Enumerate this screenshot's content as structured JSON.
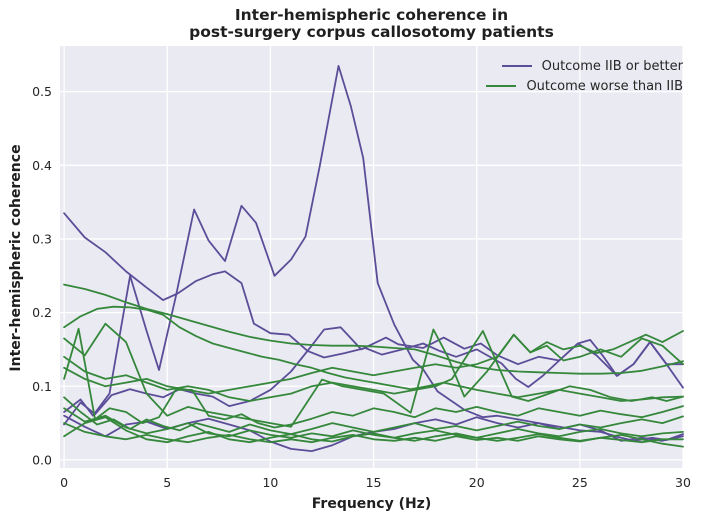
{
  "title": {
    "line1": "Inter-hemispheric coherence in",
    "line2": "post-surgery corpus callosotomy patients"
  },
  "legend": {
    "items": [
      {
        "label": "Outcome IIB or better",
        "color": "#5c4d99"
      },
      {
        "label": "Outcome worse than IIB",
        "color": "#35883b"
      }
    ]
  },
  "colors": {
    "figure_bg": "#ffffff",
    "plot_bg": "#eaeaf2",
    "grid": "#ffffff",
    "text": "#262626",
    "purple": "#5c4d99",
    "green": "#35883b"
  },
  "chart_data": {
    "type": "line",
    "title": "Inter-hemispheric coherence in post-surgery corpus callosotomy patients",
    "xlabel": "Frequency (Hz)",
    "ylabel": "Inter-hemispheric coherence",
    "xlim": [
      -0.2,
      30.0
    ],
    "ylim": [
      -0.011,
      0.562
    ],
    "xticks": [
      0,
      5,
      10,
      15,
      20,
      25,
      30
    ],
    "yticks": [
      0.0,
      0.1,
      0.2,
      0.3,
      0.4,
      0.5
    ],
    "grid": true,
    "legend_position": "upper right",
    "groups": [
      {
        "name": "Outcome IIB or better",
        "color": "#5c4d99"
      },
      {
        "name": "Outcome worse than IIB",
        "color": "#35883b"
      }
    ],
    "series": [
      {
        "name": "iib-patient-1",
        "group": 0,
        "x": [
          0,
          0.8,
          1.4,
          2.2,
          3.2,
          4.0,
          4.6,
          5.4,
          6.3,
          7.0,
          7.8,
          8.6,
          9.3,
          10.2,
          11.0,
          11.7,
          12.4,
          13.3,
          13.9,
          14.5,
          15.2,
          16.0,
          16.9,
          17.4,
          18.1,
          19.4,
          20.3,
          21,
          22,
          23,
          24,
          25,
          26,
          27,
          27.6,
          28.5,
          29.2,
          30
        ],
        "y": [
          0.065,
          0.082,
          0.06,
          0.09,
          0.25,
          0.175,
          0.122,
          0.22,
          0.34,
          0.298,
          0.27,
          0.345,
          0.322,
          0.25,
          0.272,
          0.303,
          0.4,
          0.535,
          0.48,
          0.41,
          0.24,
          0.184,
          0.136,
          0.123,
          0.093,
          0.068,
          0.058,
          0.06,
          0.055,
          0.05,
          0.045,
          0.04,
          0.038,
          0.03,
          0.026,
          0.03,
          0.027,
          0.035
        ]
      },
      {
        "name": "iib-patient-2",
        "group": 0,
        "x": [
          0,
          1,
          2,
          3,
          4,
          4.8,
          5.5,
          6.4,
          7.2,
          7.8,
          8.6,
          9.2,
          10,
          10.9,
          11.8,
          12.6,
          13.6,
          14.6,
          15.4,
          16.4,
          17.4,
          18.2,
          19,
          20,
          21.2,
          21.9,
          22.5,
          23.2,
          24,
          24.9,
          25.5,
          26.1,
          26.8,
          27.6,
          28.4,
          29.2,
          30
        ],
        "y": [
          0.335,
          0.302,
          0.282,
          0.256,
          0.234,
          0.217,
          0.226,
          0.243,
          0.252,
          0.256,
          0.24,
          0.185,
          0.172,
          0.17,
          0.148,
          0.139,
          0.145,
          0.152,
          0.143,
          0.15,
          0.158,
          0.148,
          0.14,
          0.15,
          0.131,
          0.11,
          0.099,
          0.114,
          0.135,
          0.158,
          0.163,
          0.142,
          0.114,
          0.13,
          0.16,
          0.13,
          0.098
        ]
      },
      {
        "name": "iib-patient-3",
        "group": 0,
        "x": [
          0,
          0.8,
          1.5,
          2.3,
          3.2,
          4,
          4.8,
          5.6,
          6.4,
          7.2,
          8,
          9,
          10,
          11,
          12,
          12.6,
          13.4,
          14.4,
          15.6,
          16.2,
          17.4,
          18.4,
          19.4,
          20.2,
          21,
          22,
          23,
          24,
          24.9,
          25.8,
          26.8,
          27.6,
          28.4,
          29.2,
          30
        ],
        "y": [
          0.048,
          0.078,
          0.062,
          0.088,
          0.096,
          0.09,
          0.085,
          0.096,
          0.09,
          0.086,
          0.073,
          0.08,
          0.095,
          0.12,
          0.155,
          0.177,
          0.18,
          0.15,
          0.166,
          0.157,
          0.152,
          0.166,
          0.151,
          0.158,
          0.142,
          0.13,
          0.14,
          0.135,
          0.158,
          0.142,
          0.114,
          0.13,
          0.16,
          0.13,
          0.13
        ]
      },
      {
        "name": "iib-patient-4",
        "group": 0,
        "x": [
          0,
          1,
          2,
          3,
          4,
          5,
          6,
          7,
          8,
          9,
          10,
          11,
          12,
          13,
          14,
          15,
          16,
          17,
          18,
          19,
          20,
          21,
          22,
          23,
          24,
          25,
          26,
          27,
          28,
          29,
          30
        ],
        "y": [
          0.06,
          0.045,
          0.032,
          0.048,
          0.052,
          0.042,
          0.05,
          0.056,
          0.048,
          0.04,
          0.025,
          0.015,
          0.012,
          0.02,
          0.032,
          0.038,
          0.042,
          0.05,
          0.055,
          0.048,
          0.058,
          0.05,
          0.044,
          0.05,
          0.042,
          0.048,
          0.04,
          0.026,
          0.03,
          0.026,
          0.032
        ]
      },
      {
        "name": "worse-patient-1",
        "group": 1,
        "x": [
          0,
          1,
          2,
          3,
          4,
          5,
          6,
          7,
          8,
          9,
          10,
          11,
          12,
          13,
          14,
          15,
          16,
          17,
          18,
          19,
          20,
          21,
          22,
          23,
          24,
          25,
          26,
          27,
          28,
          29,
          30
        ],
        "y": [
          0.238,
          0.232,
          0.224,
          0.214,
          0.205,
          0.198,
          0.19,
          0.182,
          0.174,
          0.167,
          0.162,
          0.158,
          0.156,
          0.155,
          0.155,
          0.154,
          0.152,
          0.15,
          0.142,
          0.133,
          0.126,
          0.122,
          0.12,
          0.119,
          0.118,
          0.117,
          0.117,
          0.118,
          0.121,
          0.127,
          0.134
        ]
      },
      {
        "name": "worse-patient-2",
        "group": 1,
        "x": [
          0,
          0.8,
          1.6,
          2.4,
          3.2,
          4,
          4.8,
          5.6,
          6.4,
          7.2,
          8,
          8.8,
          9.6,
          10.4,
          11.2,
          12,
          12.8,
          13.6,
          14.4,
          15.2,
          16,
          16.8,
          17.6,
          18.4,
          19.2,
          20,
          21,
          22,
          23,
          24,
          25,
          26,
          27,
          28,
          29,
          30
        ],
        "y": [
          0.18,
          0.195,
          0.205,
          0.208,
          0.207,
          0.204,
          0.197,
          0.18,
          0.168,
          0.158,
          0.152,
          0.146,
          0.14,
          0.136,
          0.13,
          0.125,
          0.118,
          0.112,
          0.108,
          0.104,
          0.1,
          0.096,
          0.1,
          0.105,
          0.1,
          0.095,
          0.09,
          0.085,
          0.09,
          0.095,
          0.09,
          0.085,
          0.08,
          0.082,
          0.085,
          0.086
        ]
      },
      {
        "name": "worse-patient-3",
        "group": 1,
        "x": [
          0,
          1,
          2,
          3,
          4,
          5,
          6,
          7,
          8,
          9,
          10,
          11,
          12.5,
          13.5,
          14.5,
          15.5,
          16.8,
          17.9,
          18.6,
          19.4,
          20.5,
          21.8,
          22.6,
          23.4,
          24.2,
          25,
          26,
          27,
          28,
          29,
          30
        ],
        "y": [
          0.165,
          0.142,
          0.185,
          0.16,
          0.09,
          0.06,
          0.072,
          0.065,
          0.06,
          0.055,
          0.05,
          0.045,
          0.109,
          0.1,
          0.095,
          0.09,
          0.064,
          0.177,
          0.14,
          0.086,
          0.12,
          0.17,
          0.146,
          0.155,
          0.135,
          0.14,
          0.15,
          0.14,
          0.165,
          0.155,
          0.13
        ]
      },
      {
        "name": "worse-patient-4",
        "group": 1,
        "x": [
          0,
          1,
          2,
          3,
          4,
          5,
          6,
          7,
          8,
          9,
          10,
          11,
          12,
          13,
          14,
          15,
          16,
          17,
          18,
          18.8,
          20.3,
          21.7,
          22.5,
          23.5,
          24.5,
          25.5,
          26.5,
          27.5,
          28.5,
          29.2,
          30
        ],
        "y": [
          0.14,
          0.12,
          0.11,
          0.115,
          0.105,
          0.095,
          0.1,
          0.095,
          0.085,
          0.08,
          0.085,
          0.09,
          0.1,
          0.105,
          0.1,
          0.095,
          0.09,
          0.095,
          0.1,
          0.11,
          0.175,
          0.086,
          0.08,
          0.09,
          0.1,
          0.095,
          0.085,
          0.08,
          0.085,
          0.08,
          0.086
        ]
      },
      {
        "name": "worse-patient-5",
        "group": 1,
        "x": [
          0,
          1,
          2,
          3,
          4,
          5,
          6,
          7,
          8,
          9,
          10,
          11,
          12,
          13,
          14,
          15,
          16,
          17,
          18,
          19,
          20,
          21,
          21.8,
          22.6,
          23.4,
          24.2,
          25,
          25.8,
          26.6,
          27.4,
          28.2,
          29,
          30
        ],
        "y": [
          0.125,
          0.11,
          0.1,
          0.105,
          0.11,
          0.1,
          0.095,
          0.09,
          0.095,
          0.1,
          0.105,
          0.11,
          0.118,
          0.125,
          0.12,
          0.115,
          0.12,
          0.125,
          0.13,
          0.125,
          0.13,
          0.14,
          0.17,
          0.146,
          0.16,
          0.15,
          0.155,
          0.145,
          0.15,
          0.16,
          0.17,
          0.16,
          0.175
        ]
      },
      {
        "name": "worse-patient-6",
        "group": 1,
        "x": [
          0,
          0.7,
          1.5,
          2.2,
          3,
          3.8,
          4.6,
          5.4,
          6.2,
          7,
          7.8,
          8.6,
          9.4,
          10.2,
          11,
          12,
          13,
          14,
          15,
          16,
          17,
          18,
          19,
          20,
          21,
          22,
          23,
          24,
          25,
          26,
          27,
          28,
          29,
          30
        ],
        "y": [
          0.11,
          0.178,
          0.055,
          0.07,
          0.065,
          0.05,
          0.058,
          0.095,
          0.095,
          0.06,
          0.055,
          0.062,
          0.05,
          0.044,
          0.048,
          0.056,
          0.065,
          0.06,
          0.07,
          0.065,
          0.058,
          0.07,
          0.065,
          0.072,
          0.065,
          0.06,
          0.07,
          0.065,
          0.06,
          0.067,
          0.062,
          0.058,
          0.065,
          0.073
        ]
      },
      {
        "name": "worse-patient-7",
        "group": 1,
        "x": [
          0,
          0.8,
          1.6,
          2.4,
          3.2,
          4,
          4.8,
          5.6,
          6.4,
          7.2,
          8,
          9,
          10,
          11,
          12,
          13,
          14,
          15,
          16,
          17,
          18,
          19,
          20,
          21,
          22,
          23,
          24,
          25,
          26,
          27,
          28,
          29,
          30
        ],
        "y": [
          0.085,
          0.065,
          0.048,
          0.055,
          0.042,
          0.055,
          0.046,
          0.04,
          0.05,
          0.044,
          0.038,
          0.048,
          0.04,
          0.035,
          0.042,
          0.05,
          0.044,
          0.038,
          0.044,
          0.05,
          0.042,
          0.046,
          0.04,
          0.046,
          0.052,
          0.046,
          0.042,
          0.048,
          0.044,
          0.05,
          0.055,
          0.05,
          0.059
        ]
      },
      {
        "name": "worse-patient-8",
        "group": 1,
        "x": [
          0,
          1,
          2,
          3,
          4,
          5,
          6,
          7,
          8,
          9,
          10,
          11,
          12,
          13,
          14,
          15,
          16,
          17,
          18,
          19,
          20,
          21,
          22,
          23,
          24,
          25,
          26,
          27,
          28,
          29,
          30
        ],
        "y": [
          0.07,
          0.052,
          0.06,
          0.044,
          0.036,
          0.042,
          0.05,
          0.036,
          0.032,
          0.04,
          0.034,
          0.03,
          0.036,
          0.032,
          0.04,
          0.034,
          0.03,
          0.036,
          0.04,
          0.034,
          0.03,
          0.036,
          0.042,
          0.036,
          0.032,
          0.038,
          0.042,
          0.036,
          0.032,
          0.036,
          0.038
        ]
      },
      {
        "name": "worse-patient-9",
        "group": 1,
        "x": [
          0,
          1,
          2,
          3,
          4,
          5,
          6,
          7,
          8,
          9,
          10,
          11,
          12,
          13,
          14,
          15,
          16,
          17,
          18,
          19,
          20,
          21,
          22,
          23,
          24,
          25,
          26,
          27,
          28,
          29,
          30
        ],
        "y": [
          0.05,
          0.038,
          0.032,
          0.028,
          0.034,
          0.028,
          0.024,
          0.03,
          0.034,
          0.028,
          0.024,
          0.028,
          0.024,
          0.03,
          0.034,
          0.028,
          0.026,
          0.03,
          0.026,
          0.032,
          0.027,
          0.03,
          0.026,
          0.032,
          0.028,
          0.025,
          0.03,
          0.027,
          0.024,
          0.028,
          0.028
        ]
      },
      {
        "name": "worse-patient-10",
        "group": 1,
        "x": [
          0,
          1,
          2,
          3,
          4,
          5,
          6,
          7,
          8,
          9,
          10,
          11,
          12,
          13,
          14,
          15,
          16,
          17,
          18,
          19,
          20,
          21,
          22,
          23,
          24,
          25,
          26,
          27,
          28,
          29,
          30
        ],
        "y": [
          0.032,
          0.05,
          0.058,
          0.04,
          0.028,
          0.024,
          0.032,
          0.038,
          0.028,
          0.024,
          0.03,
          0.035,
          0.028,
          0.025,
          0.032,
          0.036,
          0.03,
          0.026,
          0.032,
          0.036,
          0.03,
          0.026,
          0.03,
          0.035,
          0.03,
          0.026,
          0.03,
          0.034,
          0.028,
          0.022,
          0.018
        ]
      }
    ]
  }
}
